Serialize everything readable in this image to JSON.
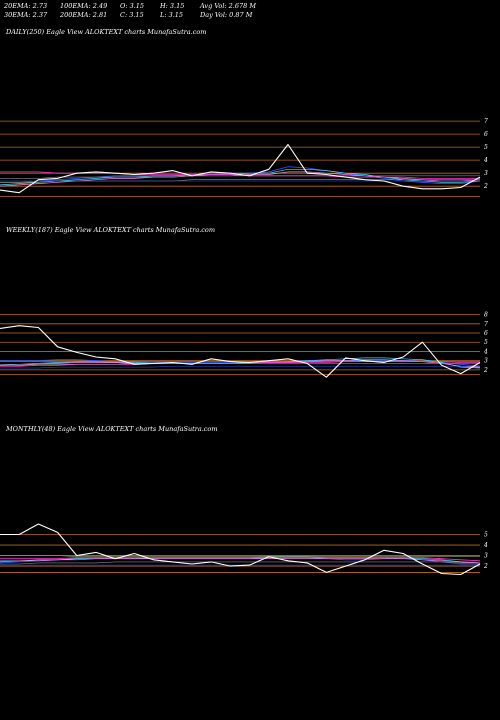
{
  "header": {
    "row1": [
      "20EMA: 2.73",
      "100EMA: 2.49",
      "O: 3.15",
      "H: 3.15",
      "Avg Vol: 2.678  M"
    ],
    "row2": [
      "30EMA: 2.37",
      "200EMA: 2.81",
      "C: 3.15",
      "L: 3.15",
      "Day Vol: 0.87  M"
    ]
  },
  "panels": [
    {
      "title": "DAILY(250) Eagle   View  ALOKTEXT charts MunafaSutra.com"
    },
    {
      "title": "WEEKLY(187) Eagle   View  ALOKTEXT charts MunafaSutra.com"
    },
    {
      "title": "MONTHLY(48) Eagle   View  ALOKTEXT charts MunafaSutra.com"
    }
  ],
  "colors": {
    "price": "#ffffff",
    "ma_blue": "#2a5cff",
    "ma_cyan": "#55d5ff",
    "ma_magenta": "#ff33cc",
    "ma_pink": "#ff88dd",
    "ma_grey": "#8a8a8a",
    "ma_olive": "#9a9a55",
    "level": "#c06a1a"
  },
  "chart_data": [
    {
      "type": "line",
      "title": "DAILY(250) Eagle   View  ALOKTEXT charts MunafaSutra.com",
      "ylim": [
        1.4,
        7.7
      ],
      "y_ticks": [
        2,
        3,
        4,
        5,
        6,
        7
      ],
      "h_levels": [
        1.2,
        2.0,
        3.0,
        4.0,
        5.0,
        6.0,
        7.0
      ],
      "x": [
        0,
        10,
        20,
        30,
        40,
        50,
        60,
        70,
        80,
        90,
        100,
        110,
        120,
        130,
        140,
        150,
        160,
        170,
        180,
        190,
        200,
        210,
        220,
        230,
        240,
        250
      ],
      "series": [
        {
          "values": [
            1.7,
            1.5,
            2.5,
            2.6,
            3.0,
            3.1,
            3.0,
            2.9,
            3.0,
            3.2,
            2.8,
            3.1,
            3.0,
            2.8,
            3.3,
            5.2,
            3.0,
            2.9,
            2.7,
            2.5,
            2.4,
            2.0,
            1.8,
            1.8,
            1.9,
            2.7
          ]
        },
        {
          "values": [
            2.3,
            2.3,
            2.4,
            2.5,
            2.6,
            2.7,
            2.8,
            2.8,
            2.8,
            2.8,
            2.9,
            2.9,
            3.0,
            3.0,
            3.1,
            3.5,
            3.4,
            3.2,
            3.0,
            2.8,
            2.6,
            2.4,
            2.3,
            2.2,
            2.2,
            2.4
          ]
        },
        {
          "values": [
            2.1,
            2.2,
            2.3,
            2.4,
            2.5,
            2.6,
            2.7,
            2.7,
            2.8,
            2.8,
            2.8,
            2.9,
            2.9,
            3.0,
            3.0,
            3.3,
            3.3,
            3.2,
            3.0,
            2.9,
            2.7,
            2.5,
            2.4,
            2.3,
            2.3,
            2.4
          ]
        },
        {
          "values": [
            2.0,
            2.1,
            2.2,
            2.3,
            2.4,
            2.5,
            2.6,
            2.6,
            2.7,
            2.7,
            2.8,
            2.8,
            2.8,
            2.9,
            2.9,
            3.1,
            3.1,
            3.0,
            2.9,
            2.8,
            2.7,
            2.6,
            2.5,
            2.4,
            2.4,
            2.5
          ]
        },
        {
          "values": [
            3.1,
            3.1,
            3.1,
            3.0,
            3.0,
            3.0,
            3.0,
            2.9,
            2.9,
            2.9,
            2.9,
            2.9,
            2.9,
            2.8,
            2.8,
            2.8,
            2.8,
            2.8,
            2.7,
            2.7,
            2.7,
            2.7,
            2.6,
            2.6,
            2.6,
            2.6
          ]
        },
        {
          "values": [
            2.6,
            2.6,
            2.6,
            2.7,
            2.7,
            2.7,
            2.7,
            2.7,
            2.7,
            2.7,
            2.8,
            2.8,
            2.8,
            2.8,
            2.8,
            2.8,
            2.8,
            2.8,
            2.8,
            2.8,
            2.8,
            2.8,
            2.8,
            2.8,
            2.8,
            2.8
          ]
        },
        {
          "values": [
            2.3,
            2.3,
            2.3,
            2.4,
            2.4,
            2.4,
            2.4,
            2.4,
            2.4,
            2.4,
            2.5,
            2.5,
            2.5,
            2.5,
            2.5,
            2.5,
            2.5,
            2.5,
            2.5,
            2.5,
            2.5,
            2.5,
            2.5,
            2.5,
            2.5,
            2.5
          ]
        },
        {
          "values": [
            2.4,
            2.4,
            2.4,
            2.4,
            2.4,
            2.4,
            2.4,
            2.4,
            2.4,
            2.4,
            2.4,
            2.4,
            2.4,
            2.4,
            2.4,
            2.4,
            2.4,
            2.4,
            2.4,
            2.4,
            2.4,
            2.4,
            2.4,
            2.4,
            2.4,
            2.4
          ]
        }
      ]
    },
    {
      "type": "line",
      "title": "WEEKLY(187) Eagle   View  ALOKTEXT charts MunafaSutra.com",
      "ylim": [
        0.9,
        8.5
      ],
      "y_ticks": [
        2,
        3,
        4,
        5,
        6,
        7,
        8
      ],
      "h_levels": [
        1.5,
        2.0,
        3.0,
        4.0,
        5.0,
        6.0,
        7.0,
        8.0
      ],
      "x": [
        0,
        10,
        20,
        30,
        40,
        50,
        60,
        70,
        80,
        90,
        100,
        110,
        120,
        130,
        140,
        150,
        160,
        170,
        180,
        190,
        200,
        210,
        220,
        230,
        240,
        250
      ],
      "series": [
        {
          "values": [
            6.5,
            6.8,
            6.6,
            4.5,
            3.9,
            3.4,
            3.2,
            2.6,
            2.7,
            2.8,
            2.6,
            3.2,
            2.9,
            2.8,
            3.0,
            3.2,
            2.7,
            1.2,
            3.3,
            3.0,
            2.8,
            3.4,
            5.0,
            2.5,
            1.6,
            2.8
          ]
        },
        {
          "values": [
            3.0,
            3.0,
            3.0,
            3.1,
            3.1,
            3.0,
            2.9,
            2.9,
            2.8,
            2.8,
            2.8,
            2.8,
            2.8,
            2.9,
            2.9,
            2.9,
            3.0,
            3.0,
            3.0,
            3.0,
            3.0,
            3.0,
            3.1,
            2.8,
            2.6,
            2.4
          ]
        },
        {
          "values": [
            2.5,
            2.6,
            2.7,
            2.8,
            2.9,
            2.9,
            2.8,
            2.8,
            2.7,
            2.7,
            2.7,
            2.7,
            2.7,
            2.8,
            2.8,
            2.9,
            3.0,
            3.1,
            3.2,
            3.3,
            3.3,
            3.2,
            3.1,
            2.8,
            2.3,
            2.2
          ]
        },
        {
          "values": [
            2.4,
            2.5,
            2.6,
            2.7,
            2.8,
            2.8,
            2.8,
            2.7,
            2.7,
            2.7,
            2.7,
            2.7,
            2.7,
            2.7,
            2.8,
            2.8,
            2.9,
            3.0,
            3.0,
            3.1,
            3.1,
            3.0,
            2.9,
            2.7,
            2.4,
            2.3
          ]
        },
        {
          "values": [
            2.4,
            2.4,
            2.5,
            2.5,
            2.6,
            2.6,
            2.6,
            2.6,
            2.7,
            2.7,
            2.7,
            2.7,
            2.7,
            2.7,
            2.8,
            2.8,
            2.8,
            2.8,
            2.9,
            2.9,
            2.9,
            2.9,
            2.9,
            2.9,
            2.8,
            2.8
          ]
        },
        {
          "values": [
            2.6,
            2.6,
            2.6,
            2.6,
            2.6,
            2.6,
            2.6,
            2.7,
            2.7,
            2.7,
            2.7,
            2.7,
            2.7,
            2.7,
            2.7,
            2.7,
            2.7,
            2.7,
            2.7,
            2.7,
            2.7,
            2.7,
            2.7,
            2.7,
            2.7,
            2.7
          ]
        },
        {
          "values": [
            2.9,
            2.9,
            2.9,
            2.9,
            2.9,
            2.9,
            2.9,
            2.9,
            2.9,
            2.9,
            2.9,
            2.9,
            2.9,
            2.9,
            2.9,
            2.9,
            2.9,
            2.9,
            2.9,
            2.9,
            2.9,
            2.9,
            2.9,
            2.9,
            2.9,
            2.9
          ]
        },
        {
          "values": [
            2.2,
            2.2,
            2.2,
            2.3,
            2.3,
            2.3,
            2.3,
            2.3,
            2.3,
            2.4,
            2.4,
            2.4,
            2.4,
            2.4,
            2.4,
            2.4,
            2.4,
            2.4,
            2.4,
            2.4,
            2.4,
            2.4,
            2.4,
            2.4,
            2.4,
            2.4
          ]
        }
      ]
    },
    {
      "type": "line",
      "title": "MONTHLY(48) Eagle   View  ALOKTEXT charts MunafaSutra.com",
      "ylim": [
        0.3,
        6.0
      ],
      "y_ticks": [
        2,
        3,
        4,
        5
      ],
      "h_levels": [
        1.4,
        2.0,
        3.0,
        4.0,
        5.0
      ],
      "x": [
        0,
        10,
        20,
        30,
        40,
        50,
        60,
        70,
        80,
        90,
        100,
        110,
        120,
        130,
        140,
        150,
        160,
        170,
        180,
        190,
        200,
        210,
        220,
        230,
        240,
        250
      ],
      "series": [
        {
          "values": [
            5.0,
            5.0,
            6.0,
            5.2,
            3.0,
            3.3,
            2.7,
            3.2,
            2.6,
            2.4,
            2.2,
            2.4,
            2.0,
            2.1,
            2.9,
            2.5,
            2.3,
            1.4,
            2.0,
            2.6,
            3.5,
            3.2,
            2.2,
            1.3,
            1.2,
            2.2
          ]
        },
        {
          "values": [
            2.3,
            2.4,
            2.5,
            2.6,
            2.7,
            2.7,
            2.7,
            2.7,
            2.7,
            2.7,
            2.7,
            2.7,
            2.7,
            2.7,
            2.8,
            2.8,
            2.8,
            2.7,
            2.6,
            2.6,
            2.7,
            2.8,
            2.6,
            2.4,
            2.2,
            2.2
          ]
        },
        {
          "values": [
            2.5,
            2.5,
            2.6,
            2.6,
            2.7,
            2.7,
            2.7,
            2.7,
            2.8,
            2.8,
            2.8,
            2.8,
            2.8,
            2.8,
            2.9,
            2.9,
            2.9,
            2.8,
            2.8,
            2.8,
            2.8,
            2.8,
            2.7,
            2.6,
            2.4,
            2.3
          ]
        },
        {
          "values": [
            2.4,
            2.5,
            2.5,
            2.6,
            2.6,
            2.7,
            2.7,
            2.7,
            2.7,
            2.7,
            2.7,
            2.7,
            2.7,
            2.7,
            2.7,
            2.7,
            2.7,
            2.7,
            2.7,
            2.7,
            2.7,
            2.7,
            2.6,
            2.5,
            2.4,
            2.3
          ]
        },
        {
          "values": [
            2.7,
            2.7,
            2.7,
            2.7,
            2.8,
            2.8,
            2.8,
            2.8,
            2.8,
            2.8,
            2.8,
            2.8,
            2.8,
            2.8,
            2.8,
            2.8,
            2.8,
            2.8,
            2.8,
            2.8,
            2.8,
            2.8,
            2.8,
            2.7,
            2.6,
            2.5
          ]
        },
        {
          "values": [
            2.2,
            2.2,
            2.3,
            2.3,
            2.3,
            2.3,
            2.4,
            2.4,
            2.4,
            2.4,
            2.4,
            2.4,
            2.4,
            2.4,
            2.4,
            2.4,
            2.4,
            2.4,
            2.4,
            2.4,
            2.4,
            2.4,
            2.4,
            2.4,
            2.3,
            2.3
          ]
        },
        {
          "values": [
            3.0,
            3.0,
            3.0,
            3.0,
            2.9,
            2.9,
            2.9,
            2.9,
            2.9,
            2.9,
            2.9,
            2.9,
            2.9,
            2.9,
            2.9,
            2.9,
            2.9,
            2.9,
            2.9,
            2.9,
            2.9,
            2.9,
            2.9,
            2.9,
            2.9,
            2.9
          ]
        },
        {
          "values": [
            2.1,
            2.1,
            2.1,
            2.1,
            2.1,
            2.1,
            2.1,
            2.1,
            2.1,
            2.1,
            2.1,
            2.1,
            2.1,
            2.1,
            2.1,
            2.1,
            2.1,
            2.1,
            2.1,
            2.1,
            2.1,
            2.1,
            2.1,
            2.1,
            2.1,
            2.1
          ]
        }
      ]
    }
  ]
}
